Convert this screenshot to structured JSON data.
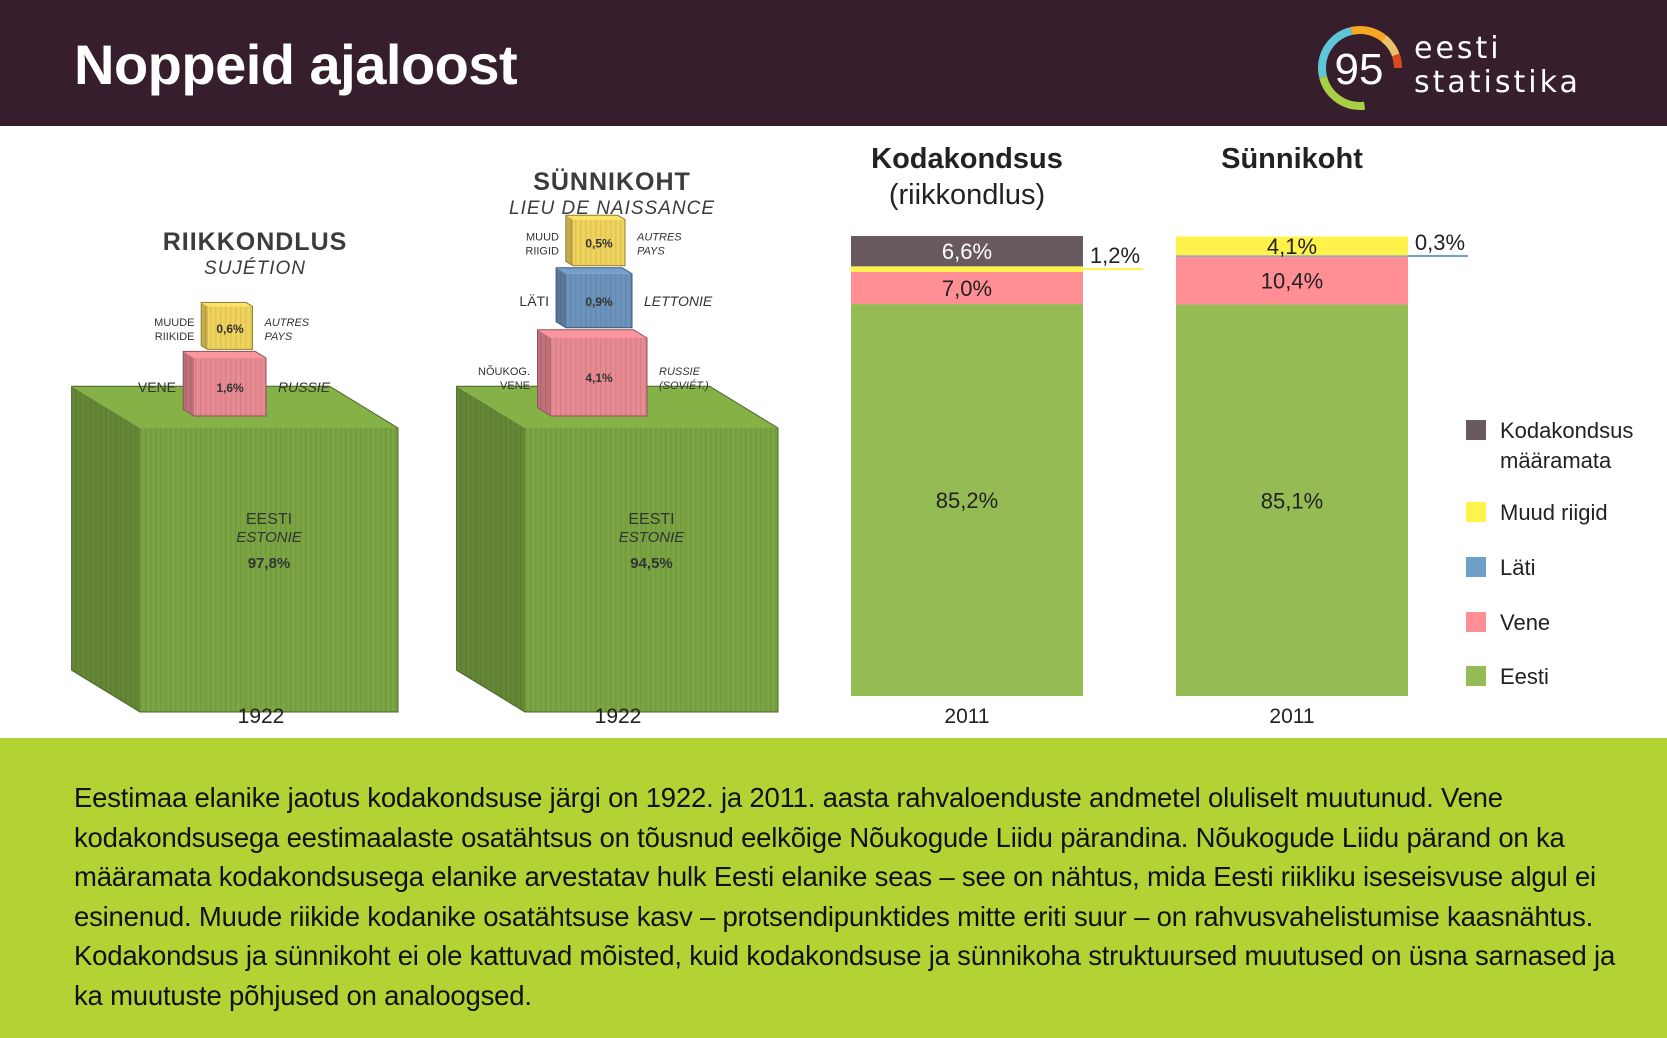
{
  "header": {
    "title": "Noppeid ajaloost",
    "logo": {
      "number": "95",
      "line1": "eesti",
      "line2": "statistika"
    }
  },
  "colors": {
    "header_bg": "#361e2d",
    "footer_bg": "#b3d334",
    "eesti": "#95bb55",
    "vene": "#ff8f95",
    "lati": "#6f9ec7",
    "muud": "#fff24a",
    "maaramata": "#685a60",
    "cube_green": "#7aa542",
    "cube_pink": "#e88a92",
    "cube_yellow": "#efd35c",
    "cube_blue": "#6b93bb"
  },
  "historical": [
    {
      "title": "RIIKKONDLUS",
      "subtitle": "SUJÉTION",
      "year": "1922",
      "cubes": [
        {
          "key": "eesti",
          "label": "EESTI",
          "label_fr": "ESTONIE",
          "value": 97.8,
          "display": "97,8%"
        },
        {
          "key": "vene",
          "label_left": "VENE",
          "label_right": "RUSSIE",
          "value": 1.6,
          "display": "1,6%"
        },
        {
          "key": "muud",
          "label_left": "MUUDE RIIKIDE",
          "label_right": "AUTRES PAYS",
          "value": 0.6,
          "display": "0,6%"
        }
      ]
    },
    {
      "title": "SÜNNIKOHT",
      "subtitle": "LIEU DE NAISSANCE",
      "year": "1922",
      "cubes": [
        {
          "key": "eesti",
          "label": "EESTI",
          "label_fr": "ESTONIE",
          "value": 94.5,
          "display": "94,5%"
        },
        {
          "key": "vene",
          "label_left": "NÕUKOG. VENE",
          "label_right": "RUSSIE (SOVIÉT.)",
          "value": 4.1,
          "display": "4,1%"
        },
        {
          "key": "lati",
          "label_left": "LÄTI",
          "label_right": "LETTONIE",
          "value": 0.9,
          "display": "0,9%"
        },
        {
          "key": "muud",
          "label_left": "MUUD RIIGID",
          "label_right": "AUTRES PAYS",
          "value": 0.5,
          "display": "0,5%"
        }
      ]
    }
  ],
  "chart_data": [
    {
      "type": "bar",
      "stacked": true,
      "title": "Kodakondsus",
      "subtitle": "(riikkondlus)",
      "categories": [
        "2011"
      ],
      "series": [
        {
          "name": "Eesti",
          "key": "eesti",
          "values": [
            85.2
          ],
          "display": "85,2%"
        },
        {
          "name": "Vene",
          "key": "vene",
          "values": [
            7.0
          ],
          "display": "7,0%"
        },
        {
          "name": "Läti",
          "key": "lati",
          "values": [
            0
          ],
          "display": ""
        },
        {
          "name": "Muud riigid",
          "key": "muud",
          "values": [
            1.2
          ],
          "display": "1,2%"
        },
        {
          "name": "Kodakondsus määramata",
          "key": "maaramata",
          "values": [
            6.6
          ],
          "display": "6,6%"
        }
      ],
      "ylim": [
        0,
        100
      ]
    },
    {
      "type": "bar",
      "stacked": true,
      "title": "Sünnikoht",
      "subtitle": "",
      "categories": [
        "2011"
      ],
      "series": [
        {
          "name": "Eesti",
          "key": "eesti",
          "values": [
            85.1
          ],
          "display": "85,1%"
        },
        {
          "name": "Vene",
          "key": "vene",
          "values": [
            10.4
          ],
          "display": "10,4%"
        },
        {
          "name": "Läti",
          "key": "lati",
          "values": [
            0.3
          ],
          "display": "0,3%"
        },
        {
          "name": "Muud riigid",
          "key": "muud",
          "values": [
            4.1
          ],
          "display": "4,1%"
        },
        {
          "name": "Kodakondsus määramata",
          "key": "maaramata",
          "values": [
            0
          ],
          "display": ""
        }
      ],
      "ylim": [
        0,
        100
      ]
    }
  ],
  "legend": {
    "placement": "right",
    "items": [
      {
        "key": "maaramata",
        "lines": [
          "Kodakondsus",
          "määramata"
        ]
      },
      {
        "key": "muud",
        "lines": [
          "Muud riigid"
        ]
      },
      {
        "key": "lati",
        "lines": [
          "Läti"
        ]
      },
      {
        "key": "vene",
        "lines": [
          "Vene"
        ]
      },
      {
        "key": "eesti",
        "lines": [
          "Eesti"
        ]
      }
    ]
  },
  "footer": {
    "text": "Eestimaa elanike jaotus kodakondsuse järgi on 1922. ja 2011. aasta rahvaloenduste andmetel oluliselt muutunud. Vene kodakondsusega eestimaalaste osatähtsus on tõusnud eelkõige Nõukogude Liidu pärandina. Nõukogude Liidu pärand on ka määramata kodakondsusega elanike arvestatav hulk Eesti elanike seas – see on nähtus, mida Eesti riikliku iseseisvuse algul ei esinenud. Muude riikide kodanike osatähtsuse kasv – protsendipunktides mitte eriti suur – on  rahvusvahelistumise kaasnähtus. Kodakondsus ja sünnikoht ei ole kattuvad mõisted, kuid kodakondsuse ja sünnikoha struktuursed muutused on üsna sarnased ja ka muutuste põhjused on analoogsed."
  }
}
